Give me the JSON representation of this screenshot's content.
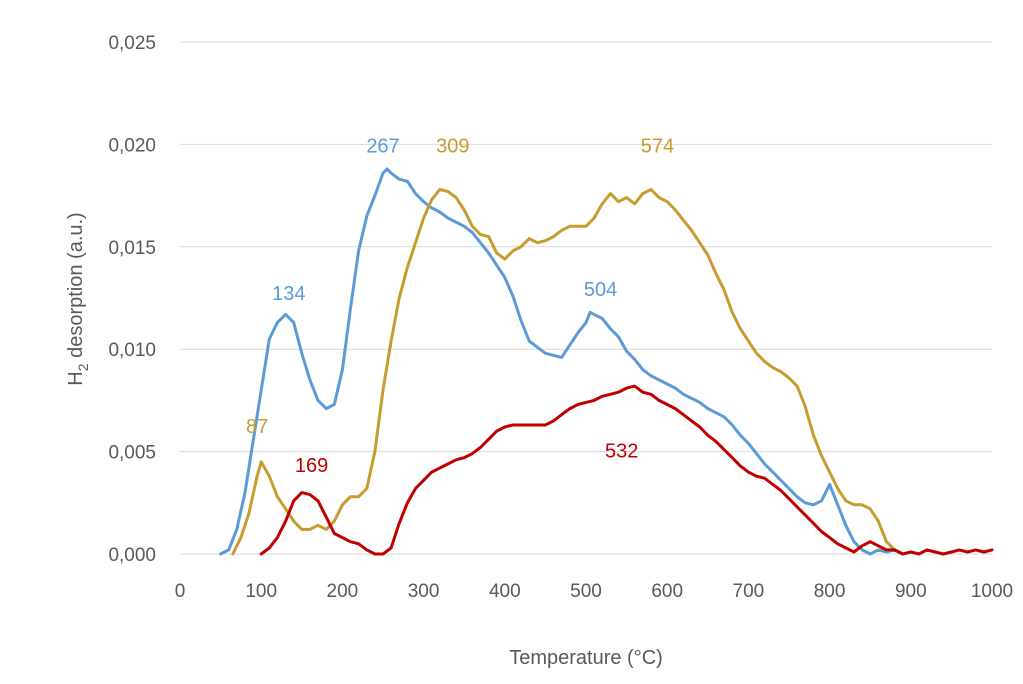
{
  "chart_data": {
    "type": "line",
    "title": "",
    "xlabel": "Temperature (°C)",
    "ylabel": {
      "prefix": "H",
      "subscript": "2",
      "suffix": " desorption (a.u.)"
    },
    "xlim": [
      0,
      1000
    ],
    "ylim": [
      0,
      0.025
    ],
    "x_ticks": [
      0,
      100,
      200,
      300,
      400,
      500,
      600,
      700,
      800,
      900,
      1000
    ],
    "x_tick_labels": [
      "0",
      "100",
      "200",
      "300",
      "400",
      "500",
      "600",
      "700",
      "800",
      "900",
      "1000"
    ],
    "y_ticks": [
      0,
      0.005,
      0.01,
      0.015,
      0.02,
      0.025
    ],
    "y_tick_labels": [
      "0,000",
      "0,005",
      "0,010",
      "0,015",
      "0,020",
      "0,025"
    ],
    "grid": "horizontal",
    "legend": "none",
    "series": [
      {
        "color": "#5b9bd5",
        "points": [
          [
            50,
            0
          ],
          [
            60,
            0.0002
          ],
          [
            70,
            0.0012
          ],
          [
            80,
            0.003
          ],
          [
            90,
            0.0055
          ],
          [
            100,
            0.008
          ],
          [
            110,
            0.0105
          ],
          [
            120,
            0.0113
          ],
          [
            130,
            0.0117
          ],
          [
            140,
            0.0113
          ],
          [
            150,
            0.0098
          ],
          [
            160,
            0.0085
          ],
          [
            170,
            0.0075
          ],
          [
            180,
            0.0071
          ],
          [
            190,
            0.0073
          ],
          [
            200,
            0.009
          ],
          [
            210,
            0.012
          ],
          [
            220,
            0.0148
          ],
          [
            230,
            0.0165
          ],
          [
            240,
            0.0175
          ],
          [
            250,
            0.0186
          ],
          [
            255,
            0.0188
          ],
          [
            260,
            0.0186
          ],
          [
            270,
            0.0183
          ],
          [
            280,
            0.0182
          ],
          [
            290,
            0.0176
          ],
          [
            300,
            0.0172
          ],
          [
            310,
            0.0169
          ],
          [
            320,
            0.0167
          ],
          [
            330,
            0.0164
          ],
          [
            340,
            0.0162
          ],
          [
            350,
            0.016
          ],
          [
            360,
            0.0157
          ],
          [
            370,
            0.0152
          ],
          [
            380,
            0.0147
          ],
          [
            390,
            0.0141
          ],
          [
            400,
            0.0135
          ],
          [
            410,
            0.0126
          ],
          [
            420,
            0.0114
          ],
          [
            430,
            0.0104
          ],
          [
            440,
            0.0101
          ],
          [
            450,
            0.0098
          ],
          [
            460,
            0.0097
          ],
          [
            470,
            0.0096
          ],
          [
            480,
            0.0102
          ],
          [
            490,
            0.0108
          ],
          [
            500,
            0.0113
          ],
          [
            505,
            0.0118
          ],
          [
            510,
            0.0117
          ],
          [
            520,
            0.0115
          ],
          [
            530,
            0.011
          ],
          [
            540,
            0.0106
          ],
          [
            550,
            0.0099
          ],
          [
            560,
            0.0095
          ],
          [
            570,
            0.009
          ],
          [
            580,
            0.0087
          ],
          [
            590,
            0.0085
          ],
          [
            600,
            0.0083
          ],
          [
            610,
            0.0081
          ],
          [
            620,
            0.0078
          ],
          [
            630,
            0.0076
          ],
          [
            640,
            0.0074
          ],
          [
            650,
            0.0071
          ],
          [
            660,
            0.0069
          ],
          [
            670,
            0.0067
          ],
          [
            680,
            0.0063
          ],
          [
            690,
            0.0058
          ],
          [
            700,
            0.0054
          ],
          [
            710,
            0.0049
          ],
          [
            720,
            0.0044
          ],
          [
            730,
            0.004
          ],
          [
            740,
            0.0036
          ],
          [
            750,
            0.0032
          ],
          [
            760,
            0.0028
          ],
          [
            770,
            0.0025
          ],
          [
            780,
            0.0024
          ],
          [
            790,
            0.0026
          ],
          [
            800,
            0.0034
          ],
          [
            810,
            0.0024
          ],
          [
            820,
            0.0014
          ],
          [
            830,
            0.0006
          ],
          [
            840,
            0.0002
          ],
          [
            850,
            0
          ],
          [
            860,
            0.0002
          ],
          [
            870,
            0.0001
          ],
          [
            880,
            0.0002
          ],
          [
            890,
            0
          ]
        ]
      },
      {
        "color": "#c69c2e",
        "points": [
          [
            65,
            0
          ],
          [
            75,
            0.0008
          ],
          [
            85,
            0.002
          ],
          [
            95,
            0.0038
          ],
          [
            100,
            0.0045
          ],
          [
            110,
            0.0038
          ],
          [
            120,
            0.0028
          ],
          [
            130,
            0.0022
          ],
          [
            140,
            0.0016
          ],
          [
            150,
            0.0012
          ],
          [
            160,
            0.0012
          ],
          [
            170,
            0.0014
          ],
          [
            180,
            0.0012
          ],
          [
            190,
            0.0016
          ],
          [
            200,
            0.0024
          ],
          [
            210,
            0.0028
          ],
          [
            220,
            0.0028
          ],
          [
            230,
            0.0032
          ],
          [
            240,
            0.005
          ],
          [
            250,
            0.008
          ],
          [
            260,
            0.0104
          ],
          [
            270,
            0.0125
          ],
          [
            280,
            0.014
          ],
          [
            290,
            0.0152
          ],
          [
            300,
            0.0164
          ],
          [
            310,
            0.0173
          ],
          [
            320,
            0.0178
          ],
          [
            330,
            0.0177
          ],
          [
            340,
            0.0174
          ],
          [
            350,
            0.0168
          ],
          [
            360,
            0.016
          ],
          [
            370,
            0.0156
          ],
          [
            380,
            0.0155
          ],
          [
            390,
            0.0147
          ],
          [
            400,
            0.0144
          ],
          [
            410,
            0.0148
          ],
          [
            420,
            0.015
          ],
          [
            430,
            0.0154
          ],
          [
            440,
            0.0152
          ],
          [
            450,
            0.0153
          ],
          [
            460,
            0.0155
          ],
          [
            470,
            0.0158
          ],
          [
            480,
            0.016
          ],
          [
            490,
            0.016
          ],
          [
            500,
            0.016
          ],
          [
            510,
            0.0164
          ],
          [
            520,
            0.0171
          ],
          [
            530,
            0.0176
          ],
          [
            540,
            0.0172
          ],
          [
            550,
            0.0174
          ],
          [
            560,
            0.0171
          ],
          [
            570,
            0.0176
          ],
          [
            580,
            0.0178
          ],
          [
            590,
            0.0174
          ],
          [
            600,
            0.0172
          ],
          [
            610,
            0.0168
          ],
          [
            620,
            0.0163
          ],
          [
            630,
            0.0158
          ],
          [
            640,
            0.0152
          ],
          [
            650,
            0.0146
          ],
          [
            660,
            0.0137
          ],
          [
            670,
            0.0129
          ],
          [
            680,
            0.0118
          ],
          [
            690,
            0.011
          ],
          [
            700,
            0.0104
          ],
          [
            710,
            0.0098
          ],
          [
            720,
            0.0094
          ],
          [
            730,
            0.0091
          ],
          [
            740,
            0.0089
          ],
          [
            750,
            0.0086
          ],
          [
            760,
            0.0082
          ],
          [
            770,
            0.0072
          ],
          [
            780,
            0.0058
          ],
          [
            790,
            0.0048
          ],
          [
            800,
            0.004
          ],
          [
            810,
            0.0032
          ],
          [
            820,
            0.0026
          ],
          [
            830,
            0.0024
          ],
          [
            840,
            0.0024
          ],
          [
            850,
            0.0022
          ],
          [
            860,
            0.0016
          ],
          [
            870,
            0.0006
          ],
          [
            880,
            0.0002
          ],
          [
            890,
            0
          ]
        ]
      },
      {
        "color": "#c00000",
        "points": [
          [
            100,
            0
          ],
          [
            110,
            0.0003
          ],
          [
            120,
            0.0008
          ],
          [
            130,
            0.0016
          ],
          [
            140,
            0.0026
          ],
          [
            150,
            0.003
          ],
          [
            160,
            0.0029
          ],
          [
            170,
            0.0026
          ],
          [
            180,
            0.0018
          ],
          [
            190,
            0.001
          ],
          [
            200,
            0.0008
          ],
          [
            210,
            0.0006
          ],
          [
            220,
            0.0005
          ],
          [
            230,
            0.0002
          ],
          [
            240,
            0
          ],
          [
            250,
            0
          ],
          [
            260,
            0.0003
          ],
          [
            270,
            0.0015
          ],
          [
            280,
            0.0025
          ],
          [
            290,
            0.0032
          ],
          [
            300,
            0.0036
          ],
          [
            310,
            0.004
          ],
          [
            320,
            0.0042
          ],
          [
            330,
            0.0044
          ],
          [
            340,
            0.0046
          ],
          [
            350,
            0.0047
          ],
          [
            360,
            0.0049
          ],
          [
            370,
            0.0052
          ],
          [
            380,
            0.0056
          ],
          [
            390,
            0.006
          ],
          [
            400,
            0.0062
          ],
          [
            410,
            0.0063
          ],
          [
            420,
            0.0063
          ],
          [
            430,
            0.0063
          ],
          [
            440,
            0.0063
          ],
          [
            450,
            0.0063
          ],
          [
            460,
            0.0065
          ],
          [
            470,
            0.0068
          ],
          [
            480,
            0.0071
          ],
          [
            490,
            0.0073
          ],
          [
            500,
            0.0074
          ],
          [
            510,
            0.0075
          ],
          [
            520,
            0.0077
          ],
          [
            530,
            0.0078
          ],
          [
            540,
            0.0079
          ],
          [
            550,
            0.0081
          ],
          [
            560,
            0.0082
          ],
          [
            570,
            0.0079
          ],
          [
            580,
            0.0078
          ],
          [
            590,
            0.0075
          ],
          [
            600,
            0.0073
          ],
          [
            610,
            0.0071
          ],
          [
            620,
            0.0068
          ],
          [
            630,
            0.0065
          ],
          [
            640,
            0.0062
          ],
          [
            650,
            0.0058
          ],
          [
            660,
            0.0055
          ],
          [
            670,
            0.0051
          ],
          [
            680,
            0.0047
          ],
          [
            690,
            0.0043
          ],
          [
            700,
            0.004
          ],
          [
            710,
            0.0038
          ],
          [
            720,
            0.0037
          ],
          [
            730,
            0.0034
          ],
          [
            740,
            0.0031
          ],
          [
            750,
            0.0027
          ],
          [
            760,
            0.0023
          ],
          [
            770,
            0.0019
          ],
          [
            780,
            0.0015
          ],
          [
            790,
            0.0011
          ],
          [
            800,
            0.0008
          ],
          [
            810,
            0.0005
          ],
          [
            820,
            0.0003
          ],
          [
            830,
            0.0001
          ],
          [
            840,
            0.0004
          ],
          [
            850,
            0.0006
          ],
          [
            860,
            0.0004
          ],
          [
            870,
            0.0002
          ],
          [
            880,
            0.0002
          ],
          [
            890,
            0
          ],
          [
            900,
            0.0001
          ],
          [
            910,
            0
          ],
          [
            920,
            0.0002
          ],
          [
            930,
            0.0001
          ],
          [
            940,
            0
          ],
          [
            950,
            0.0001
          ],
          [
            960,
            0.0002
          ],
          [
            970,
            0.0001
          ],
          [
            980,
            0.0002
          ],
          [
            990,
            0.0001
          ],
          [
            1000,
            0.0002
          ]
        ]
      }
    ],
    "annotations": [
      {
        "text": "134",
        "x": 134,
        "y": 0.0124,
        "color": "#5b9bd5"
      },
      {
        "text": "267",
        "x": 250,
        "y": 0.0196,
        "color": "#5b9bd5"
      },
      {
        "text": "504",
        "x": 518,
        "y": 0.0126,
        "color": "#5b9bd5"
      },
      {
        "text": "87",
        "x": 95,
        "y": 0.0059,
        "color": "#c69c2e"
      },
      {
        "text": "309",
        "x": 336,
        "y": 0.0196,
        "color": "#c69c2e"
      },
      {
        "text": "574",
        "x": 588,
        "y": 0.0196,
        "color": "#c69c2e"
      },
      {
        "text": "169",
        "x": 162,
        "y": 0.004,
        "color": "#c00000"
      },
      {
        "text": "532",
        "x": 544,
        "y": 0.0047,
        "color": "#c00000"
      }
    ]
  }
}
